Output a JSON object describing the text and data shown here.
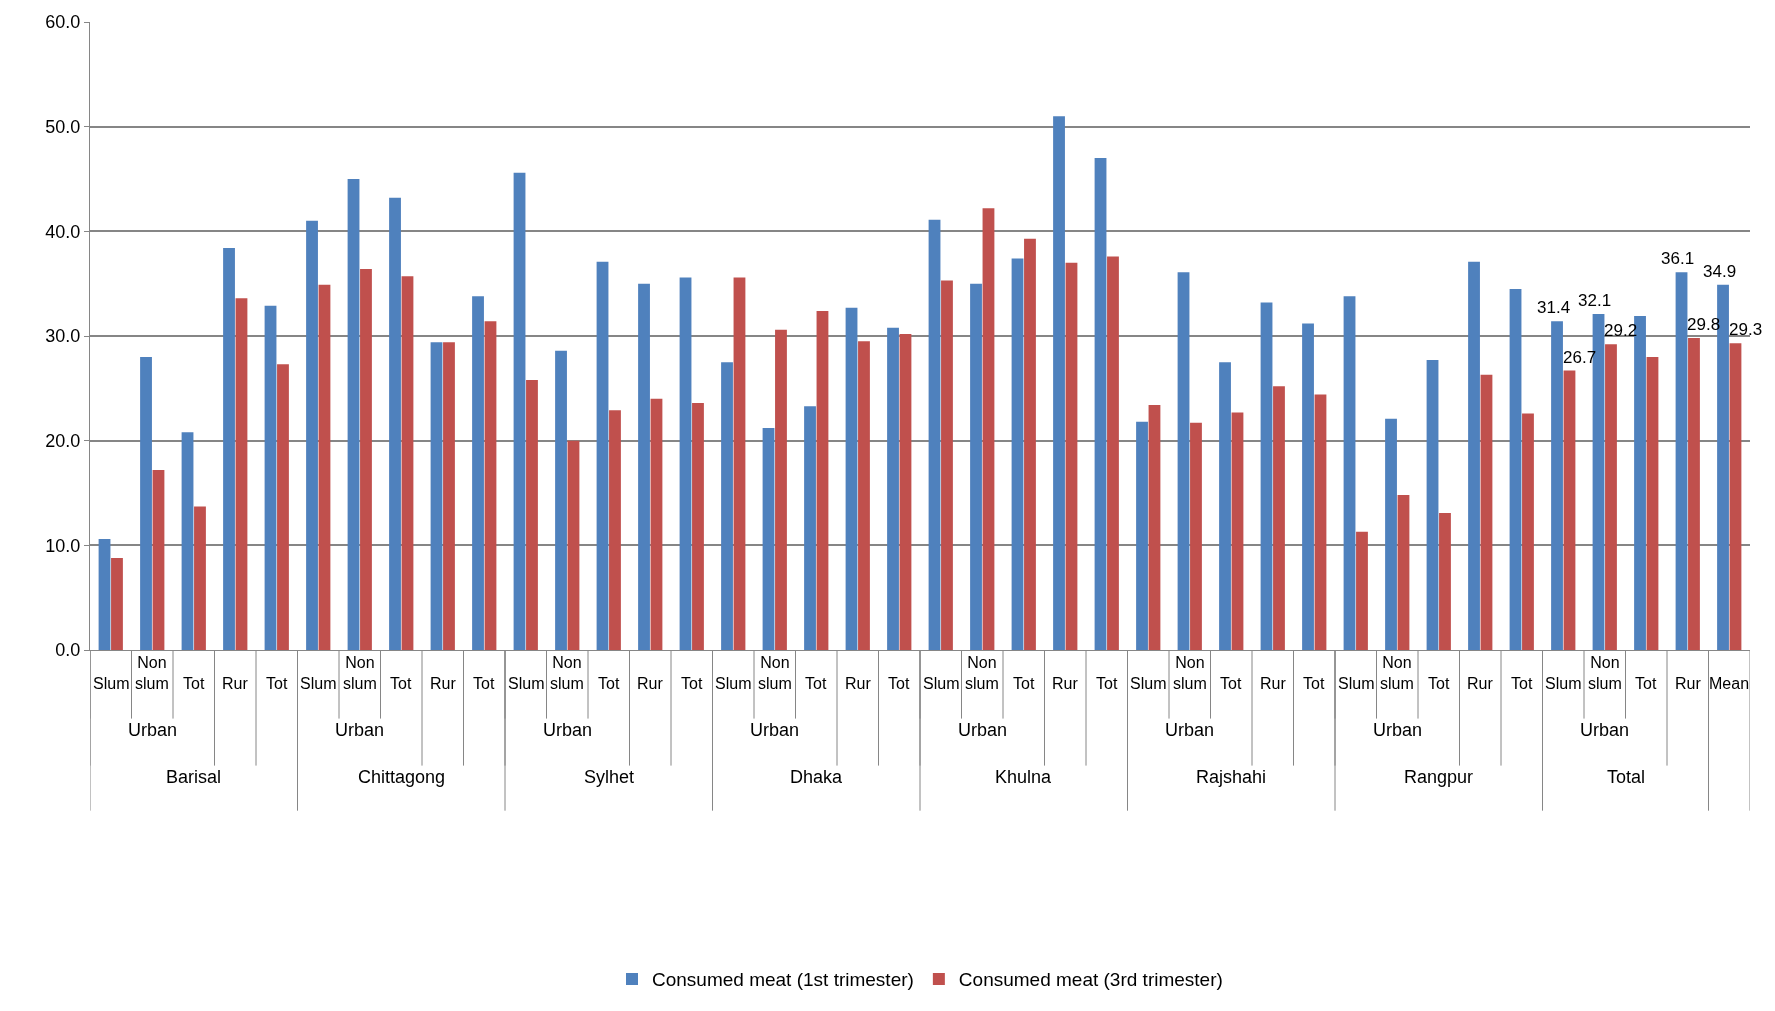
{
  "chart_data": {
    "type": "bar",
    "categories": [
      "Slum",
      "Non slum",
      "Tot",
      "Rur",
      "Tot",
      "Slum",
      "Non slum",
      "Tot",
      "Rur",
      "Tot",
      "Slum",
      "Non slum",
      "Tot",
      "Rur",
      "Tot",
      "Slum",
      "Non slum",
      "Tot",
      "Rur",
      "Tot",
      "Slum",
      "Non slum",
      "Tot",
      "Rur",
      "Tot",
      "Slum",
      "Non slum",
      "Tot",
      "Rur",
      "Tot",
      "Slum",
      "Non slum",
      "Tot",
      "Rur",
      "Tot",
      "Slum",
      "Non slum",
      "Tot",
      "Rur",
      "Mean"
    ],
    "annotations": [
      "Urban",
      "Urban",
      "Urban",
      "Urban",
      "Urban",
      "Urban",
      "Urban",
      "Urban",
      "Barisal",
      "Chittagong",
      "Sylhet",
      "Dhaka",
      "Khulna",
      "Rajshahi",
      "Rangpur",
      "Total"
    ],
    "series": [
      {
        "name": "Consumed meat (1st trimester)",
        "color": "#4f81bd",
        "values": [
          10.6,
          28.0,
          20.8,
          38.4,
          32.9,
          41.0,
          45.0,
          43.2,
          29.4,
          33.8,
          45.6,
          28.6,
          37.1,
          35.0,
          35.6,
          27.5,
          21.2,
          23.3,
          32.7,
          30.8,
          41.1,
          35.0,
          37.4,
          51.0,
          47.0,
          21.8,
          36.1,
          27.5,
          33.2,
          31.2,
          33.8,
          22.1,
          27.7,
          37.1,
          34.5,
          31.4,
          32.1,
          31.9,
          36.1,
          34.9
        ],
        "value_labels": [
          null,
          null,
          null,
          null,
          null,
          null,
          null,
          null,
          null,
          null,
          null,
          null,
          null,
          null,
          null,
          null,
          null,
          null,
          null,
          null,
          null,
          null,
          null,
          null,
          null,
          null,
          null,
          null,
          null,
          null,
          null,
          null,
          null,
          null,
          null,
          "31.4",
          "32.1",
          null,
          "36.1",
          "34.9"
        ]
      },
      {
        "name": "Consumed meat (3rd trimester)",
        "color": "#c0504d",
        "values": [
          8.8,
          17.2,
          13.7,
          33.6,
          27.3,
          34.9,
          36.4,
          35.7,
          29.4,
          31.4,
          25.8,
          20.0,
          22.9,
          24.0,
          23.6,
          35.6,
          30.6,
          32.4,
          29.5,
          30.2,
          35.3,
          42.2,
          39.3,
          37.0,
          37.6,
          23.4,
          21.7,
          22.7,
          25.2,
          24.4,
          11.3,
          14.8,
          13.1,
          26.3,
          22.6,
          26.7,
          29.2,
          28.0,
          29.8,
          29.3
        ],
        "value_labels": [
          null,
          null,
          null,
          null,
          null,
          null,
          null,
          null,
          null,
          null,
          null,
          null,
          null,
          null,
          null,
          null,
          null,
          null,
          null,
          null,
          null,
          null,
          null,
          null,
          null,
          null,
          null,
          null,
          null,
          null,
          null,
          null,
          null,
          null,
          null,
          "26.7",
          "29.2",
          null,
          "29.8",
          "29.3"
        ]
      }
    ],
    "ylim": [
      0,
      60
    ],
    "yticks": [
      {
        "value": 0,
        "label": "0.0"
      },
      {
        "value": 10,
        "label": "10.0"
      },
      {
        "value": 20,
        "label": "20.0"
      },
      {
        "value": 30,
        "label": "30.0"
      },
      {
        "value": 40,
        "label": "40.0"
      },
      {
        "value": 50,
        "label": "50.0"
      },
      {
        "value": 60,
        "label": "60.0"
      }
    ],
    "grid": "y",
    "legend": "bottom"
  }
}
